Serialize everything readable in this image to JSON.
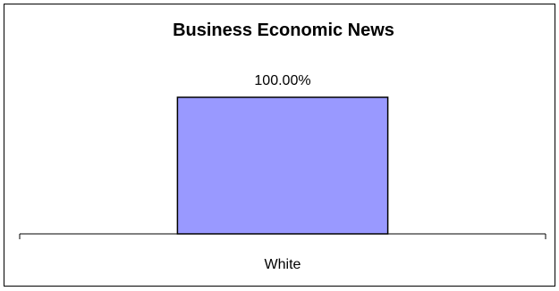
{
  "chart_data": {
    "type": "bar",
    "title": "Business Economic News",
    "categories": [
      "White"
    ],
    "values": [
      100
    ],
    "data_labels": [
      "100.00%"
    ],
    "ylim": [
      0,
      100
    ],
    "xlabel": "",
    "ylabel": "",
    "grid": false,
    "legend": false,
    "colors": {
      "bar_fill": "#9999ff",
      "bar_stroke": "#000000",
      "axis": "#000000",
      "background": "#ffffff"
    }
  }
}
